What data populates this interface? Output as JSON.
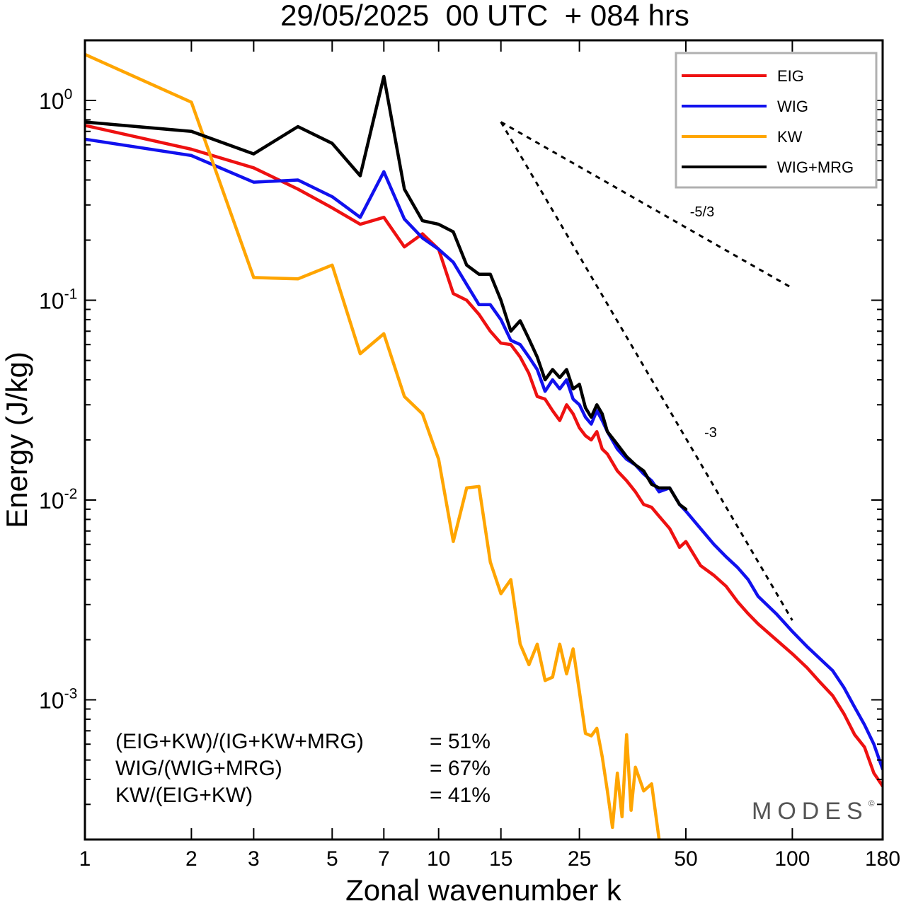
{
  "chart_data": {
    "type": "line",
    "title": "29/05/2025  00 UTC  + 084 hrs",
    "xlabel": "Zonal wavenumber k",
    "ylabel": "Energy (J/kg)",
    "xscale": "log",
    "yscale": "log",
    "xlim": [
      1,
      180
    ],
    "ylim": [
      0.0002,
      2
    ],
    "xticks": [
      1,
      2,
      3,
      5,
      7,
      10,
      15,
      25,
      50,
      100,
      180
    ],
    "yticks": [
      {
        "value": 1,
        "base": "10",
        "exp": "0"
      },
      {
        "value": 0.1,
        "base": "10",
        "exp": "-1"
      },
      {
        "value": 0.01,
        "base": "10",
        "exp": "-2"
      },
      {
        "value": 0.001,
        "base": "10",
        "exp": "-3"
      }
    ],
    "grid": false,
    "legend": "top-right",
    "series": [
      {
        "name": "EIG",
        "color": "#ee1111",
        "x": [
          1,
          2,
          3,
          4,
          5,
          6,
          7,
          8,
          9,
          10,
          11,
          12,
          13,
          14,
          15,
          16,
          17,
          18,
          19,
          20,
          21,
          22,
          23,
          24,
          25,
          26,
          27,
          28,
          29,
          30,
          32,
          34,
          36,
          38,
          40,
          42,
          45,
          48,
          50,
          55,
          60,
          65,
          70,
          75,
          80,
          90,
          100,
          110,
          120,
          130,
          140,
          150,
          160,
          170,
          180
        ],
        "values": [
          0.75,
          0.57,
          0.46,
          0.36,
          0.29,
          0.24,
          0.26,
          0.185,
          0.215,
          0.18,
          0.108,
          0.1,
          0.085,
          0.07,
          0.061,
          0.06,
          0.052,
          0.043,
          0.033,
          0.032,
          0.028,
          0.025,
          0.03,
          0.027,
          0.023,
          0.021,
          0.02,
          0.022,
          0.018,
          0.017,
          0.014,
          0.0125,
          0.011,
          0.0095,
          0.0092,
          0.0083,
          0.0072,
          0.0058,
          0.0062,
          0.0047,
          0.0042,
          0.0037,
          0.0031,
          0.0027,
          0.0024,
          0.002,
          0.0017,
          0.00145,
          0.00122,
          0.00105,
          0.00085,
          0.00067,
          0.00058,
          0.00043,
          0.00037
        ]
      },
      {
        "name": "WIG",
        "color": "#1111ee",
        "x": [
          1,
          2,
          3,
          4,
          5,
          6,
          7,
          8,
          9,
          10,
          11,
          12,
          13,
          14,
          15,
          16,
          17,
          18,
          19,
          20,
          21,
          22,
          23,
          24,
          25,
          26,
          27,
          28,
          29,
          30,
          32,
          34,
          36,
          38,
          40,
          42,
          45,
          48,
          50,
          55,
          60,
          65,
          70,
          75,
          80,
          90,
          100,
          110,
          120,
          130,
          140,
          150,
          160,
          170,
          180
        ],
        "values": [
          0.64,
          0.53,
          0.39,
          0.4,
          0.33,
          0.26,
          0.44,
          0.255,
          0.205,
          0.18,
          0.155,
          0.12,
          0.095,
          0.095,
          0.08,
          0.063,
          0.06,
          0.052,
          0.045,
          0.035,
          0.04,
          0.036,
          0.04,
          0.032,
          0.03,
          0.026,
          0.024,
          0.028,
          0.025,
          0.022,
          0.018,
          0.016,
          0.015,
          0.0135,
          0.0125,
          0.011,
          0.0115,
          0.0095,
          0.0088,
          0.0072,
          0.006,
          0.0052,
          0.0046,
          0.004,
          0.0033,
          0.0027,
          0.0022,
          0.00185,
          0.0016,
          0.0014,
          0.00115,
          0.00092,
          0.00075,
          0.0006,
          0.00045
        ]
      },
      {
        "name": "KW",
        "color": "#ffa500",
        "x": [
          1,
          2,
          3,
          4,
          5,
          6,
          7,
          8,
          9,
          10,
          11,
          12,
          13,
          14,
          15,
          16,
          17,
          18,
          19,
          20,
          21,
          22,
          23,
          24,
          25,
          26,
          27,
          28,
          29,
          30,
          31,
          32,
          33,
          34,
          35,
          36,
          38,
          40,
          42
        ],
        "values": [
          1.7,
          0.98,
          0.13,
          0.128,
          0.15,
          0.054,
          0.068,
          0.033,
          0.027,
          0.016,
          0.0062,
          0.0115,
          0.0117,
          0.0049,
          0.0034,
          0.004,
          0.0019,
          0.0015,
          0.0019,
          0.00125,
          0.0013,
          0.0019,
          0.00135,
          0.0018,
          0.0011,
          0.00068,
          0.00066,
          0.00072,
          0.00052,
          0.00035,
          0.00023,
          0.00043,
          0.00026,
          0.00067,
          0.00028,
          0.00046,
          0.00035,
          0.00038,
          0.0002
        ]
      },
      {
        "name": "WIG+MRG",
        "color": "#000000",
        "x": [
          1,
          2,
          3,
          4,
          5,
          6,
          7,
          8,
          9,
          10,
          11,
          12,
          13,
          14,
          15,
          16,
          17,
          18,
          19,
          20,
          21,
          22,
          23,
          24,
          25,
          26,
          27,
          28,
          29,
          30,
          32,
          34,
          36,
          38,
          40,
          42,
          45,
          48,
          50
        ],
        "values": [
          0.78,
          0.7,
          0.54,
          0.74,
          0.61,
          0.42,
          1.32,
          0.36,
          0.25,
          0.24,
          0.22,
          0.15,
          0.135,
          0.135,
          0.1,
          0.07,
          0.079,
          0.064,
          0.052,
          0.04,
          0.045,
          0.041,
          0.045,
          0.036,
          0.038,
          0.029,
          0.026,
          0.03,
          0.027,
          0.022,
          0.019,
          0.0165,
          0.015,
          0.014,
          0.012,
          0.0115,
          0.0115,
          0.0095,
          0.009
        ]
      }
    ],
    "reference_lines": [
      {
        "label": "-5/3",
        "x": [
          15,
          100
        ],
        "values": [
          0.78,
          0.115
        ]
      },
      {
        "label": "-3",
        "x": [
          15,
          100
        ],
        "values": [
          0.78,
          0.0025
        ]
      }
    ],
    "annotations": [
      {
        "label": "(EIG+KW)/(IG+KW+MRG)",
        "value": "= 51%"
      },
      {
        "label": "WIG/(WIG+MRG)",
        "value": "= 67%"
      },
      {
        "label": "KW/(EIG+KW)",
        "value": "= 41%"
      }
    ],
    "watermark": "MODES",
    "watermark_mark": "©"
  }
}
